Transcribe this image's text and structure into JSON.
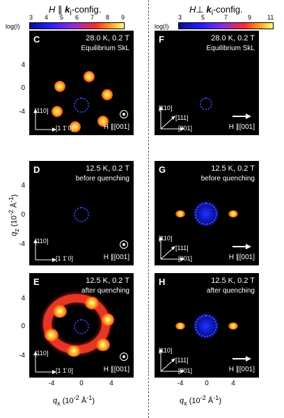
{
  "left_column": {
    "title": "H ∥ k_i-config.",
    "colorbar": {
      "label": "log(I)",
      "ticks": [
        "3",
        "4",
        "5",
        "6",
        "7",
        "8",
        "9"
      ]
    },
    "panels": [
      {
        "label": "C",
        "line1": "28.0 K, 0.2 T",
        "line2": "Equilibrium SkL",
        "dir_a": "[110]",
        "dir_b": "[1 1̄ 0]",
        "h_dir": "H ∥[001]"
      },
      {
        "label": "D",
        "line1": "12.5 K, 0.2 T",
        "line2": "before quenching",
        "dir_a": "[110]",
        "dir_b": "[1 1̄ 0]",
        "h_dir": "H ∥[001]"
      },
      {
        "label": "E",
        "line1": "12.5 K, 0.2 T",
        "line2": "after quenching",
        "dir_a": "[110]",
        "dir_b": "[1 1̄ 0]",
        "h_dir": "H ∥[001]"
      }
    ],
    "y_ticks": [
      "4",
      "0",
      "-4"
    ],
    "x_ticks": [
      "-4",
      "0",
      "4"
    ]
  },
  "right_column": {
    "title": "H ⊥ k_i-config.",
    "colorbar": {
      "label": "log(I)",
      "ticks": [
        "3",
        "5",
        "7",
        "9",
        "11"
      ]
    },
    "panels": [
      {
        "label": "F",
        "line1": "28.0 K, 0.2 T",
        "line2": "Equilibrium SkL",
        "dir_a": "[110]",
        "dir_b": "[111]",
        "dir_c": "[001]",
        "h_dir": "H ∥[001]"
      },
      {
        "label": "G",
        "line1": "12.5 K, 0.2 T",
        "line2": "before quenching",
        "dir_a": "[110]",
        "dir_b": "[111]",
        "dir_c": "[001]",
        "h_dir": "H ∥[001]"
      },
      {
        "label": "H",
        "line1": "12.5 K, 0.2 T",
        "line2": "after quenching",
        "dir_a": "[110]",
        "dir_b": "[111]",
        "dir_c": "[001]",
        "h_dir": "H ∥[001]"
      }
    ],
    "x_ticks": [
      "-4",
      "0",
      "4"
    ]
  },
  "axes": {
    "y_label": "q_z (10^-2 Å^-1)",
    "x_label": "q_x (10^-2 Å^-1)"
  }
}
